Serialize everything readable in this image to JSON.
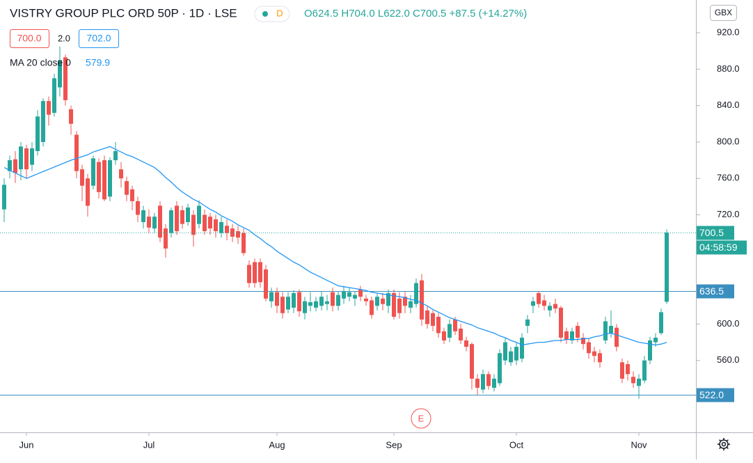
{
  "chart_data": {
    "type": "candlestick",
    "title": "VISTRY GROUP PLC ORD 50P · 1D · LSE",
    "interval_badge": "D",
    "ohlc_legend": "O624.5 H704.0 L622.0 C700.5 +87.5 (+14.27%)",
    "bid": "700.0",
    "spread": "2.0",
    "ask": "702.0",
    "currency": "GBX",
    "countdown": "04:58:59",
    "event_marker": "E",
    "up_color": "#26a69a",
    "down_color": "#ef5350",
    "grid": false,
    "categories": [
      null,
      null,
      null,
      null,
      "Jun",
      null,
      null,
      null,
      null,
      null,
      null,
      null,
      null,
      null,
      null,
      null,
      null,
      null,
      null,
      null,
      null,
      null,
      null,
      null,
      null,
      null,
      "Jul",
      null,
      null,
      null,
      null,
      null,
      null,
      null,
      null,
      null,
      null,
      null,
      null,
      null,
      null,
      null,
      null,
      null,
      null,
      null,
      null,
      null,
      null,
      "Aug",
      null,
      null,
      null,
      null,
      null,
      null,
      null,
      null,
      null,
      null,
      null,
      null,
      null,
      null,
      null,
      null,
      null,
      null,
      null,
      null,
      "Sep",
      null,
      null,
      null,
      null,
      null,
      null,
      null,
      null,
      null,
      null,
      null,
      null,
      null,
      null,
      null,
      null,
      null,
      null,
      null,
      null,
      null,
      "Oct",
      null,
      null,
      null,
      null,
      null,
      null,
      null,
      null,
      null,
      null,
      null,
      null,
      null,
      null,
      null,
      null,
      null,
      null,
      null,
      null,
      null,
      "Nov",
      null,
      null,
      null,
      null,
      null
    ],
    "open": [
      726,
      768,
      781,
      770,
      793,
      775,
      790,
      800,
      845,
      832,
      860,
      893,
      836,
      808,
      770,
      760,
      752,
      778,
      780,
      740,
      780,
      770,
      757,
      748,
      735,
      712,
      718,
      705,
      730,
      705,
      700,
      730,
      725,
      712,
      720,
      710,
      720,
      718,
      715,
      700,
      708,
      705,
      702,
      700,
      665,
      668,
      668,
      660,
      625,
      635,
      630,
      616,
      618,
      635,
      612,
      620,
      618,
      620,
      622,
      635,
      620,
      628,
      630,
      628,
      638,
      628,
      626,
      620,
      628,
      620,
      634,
      628,
      630,
      618,
      622,
      648,
      615,
      612,
      608,
      592,
      585,
      605,
      595,
      582,
      578,
      540,
      528,
      545,
      530,
      535,
      560,
      558,
      560,
      562,
      598,
      620,
      634,
      626,
      615,
      622,
      618,
      592,
      582,
      598,
      585,
      580,
      570,
      568,
      582,
      590,
      596,
      558,
      556,
      542,
      532,
      538,
      560,
      580,
      590,
      624.5
    ],
    "high": [
      760,
      785,
      790,
      800,
      797,
      800,
      835,
      848,
      850,
      875,
      905,
      896,
      840,
      812,
      775,
      765,
      785,
      782,
      785,
      783,
      800,
      778,
      762,
      752,
      740,
      730,
      726,
      722,
      735,
      710,
      728,
      735,
      730,
      732,
      725,
      736,
      726,
      722,
      720,
      718,
      715,
      710,
      708,
      705,
      670,
      672,
      672,
      665,
      640,
      640,
      635,
      635,
      637,
      638,
      630,
      635,
      630,
      636,
      632,
      640,
      636,
      642,
      640,
      636,
      642,
      632,
      630,
      634,
      634,
      638,
      638,
      635,
      636,
      632,
      650,
      655,
      620,
      615,
      612,
      596,
      605,
      608,
      600,
      586,
      580,
      545,
      550,
      548,
      545,
      572,
      585,
      575,
      580,
      590,
      610,
      630,
      636,
      632,
      624,
      628,
      620,
      596,
      596,
      602,
      590,
      584,
      575,
      572,
      608,
      615,
      600,
      562,
      560,
      548,
      545,
      565,
      586,
      590,
      617,
      704
    ],
    "low": [
      712,
      760,
      755,
      758,
      760,
      768,
      785,
      795,
      818,
      828,
      850,
      840,
      808,
      760,
      735,
      718,
      748,
      738,
      735,
      735,
      775,
      750,
      735,
      725,
      712,
      705,
      700,
      700,
      690,
      673,
      695,
      698,
      705,
      708,
      685,
      705,
      698,
      698,
      695,
      695,
      692,
      690,
      688,
      675,
      640,
      640,
      640,
      625,
      618,
      612,
      606,
      612,
      612,
      608,
      605,
      614,
      614,
      615,
      615,
      614,
      615,
      622,
      625,
      620,
      625,
      620,
      606,
      615,
      615,
      612,
      605,
      606,
      612,
      612,
      618,
      598,
      595,
      592,
      585,
      578,
      580,
      588,
      578,
      570,
      528,
      522,
      524,
      528,
      526,
      532,
      555,
      554,
      555,
      558,
      590,
      612,
      618,
      615,
      608,
      612,
      580,
      578,
      578,
      580,
      572,
      562,
      558,
      552,
      578,
      585,
      570,
      535,
      538,
      530,
      518,
      535,
      556,
      575,
      588,
      622
    ],
    "close": [
      753,
      780,
      766,
      795,
      770,
      793,
      828,
      845,
      830,
      870,
      890,
      846,
      820,
      768,
      752,
      730,
      782,
      745,
      737,
      780,
      790,
      760,
      742,
      735,
      720,
      725,
      706,
      718,
      695,
      683,
      725,
      702,
      710,
      728,
      698,
      730,
      702,
      705,
      702,
      712,
      700,
      696,
      695,
      678,
      645,
      645,
      646,
      628,
      635,
      620,
      612,
      630,
      634,
      614,
      625,
      624,
      625,
      630,
      625,
      620,
      632,
      636,
      635,
      632,
      630,
      625,
      610,
      630,
      622,
      634,
      608,
      612,
      620,
      625,
      645,
      605,
      600,
      598,
      590,
      582,
      600,
      592,
      582,
      575,
      540,
      530,
      545,
      532,
      540,
      568,
      580,
      570,
      575,
      585,
      605,
      625,
      622,
      620,
      620,
      617,
      585,
      583,
      592,
      585,
      578,
      568,
      565,
      558,
      603,
      598,
      575,
      540,
      545,
      535,
      540,
      560,
      582,
      585,
      613,
      700.5
    ],
    "ma": {
      "name": "MA 20 close 0",
      "color": "#2196f3",
      "values": [
        772,
        769,
        766,
        763,
        760,
        762.5,
        765,
        767.5,
        770,
        772.5,
        775,
        777.5,
        780,
        782,
        784,
        786,
        789,
        791,
        793,
        795,
        792,
        789,
        786,
        784,
        781,
        778,
        775,
        772,
        767,
        761,
        756,
        750,
        745,
        741,
        737,
        734,
        730,
        726,
        723,
        719,
        716,
        713,
        709,
        706,
        703,
        698,
        694,
        689,
        685,
        680,
        676,
        672,
        668,
        665,
        661,
        657,
        654,
        651,
        648,
        645,
        642,
        641,
        640,
        639,
        638,
        637,
        635,
        634,
        633,
        632,
        631,
        630,
        629,
        627,
        626,
        623,
        620,
        616,
        613,
        610,
        607,
        605,
        603,
        601,
        599,
        596,
        594,
        592,
        590,
        587,
        585,
        582,
        580,
        577,
        578,
        579,
        580,
        580,
        581,
        582,
        582,
        583,
        583,
        583,
        584,
        584,
        586,
        587,
        589,
        590,
        588,
        586,
        584,
        582,
        580,
        579,
        578,
        577,
        578,
        579.9
      ]
    },
    "price_lines": [
      636.5,
      {
        "value": 522,
        "label": "522.0"
      }
    ],
    "ylim": [
      481,
      956
    ],
    "yticks": [
      {
        "value": 920,
        "label": "920.0"
      },
      {
        "value": 880,
        "label": "880.0"
      },
      {
        "value": 840,
        "label": "840.0"
      },
      {
        "value": 800,
        "label": "800.0"
      },
      {
        "value": 760,
        "label": "760.0"
      },
      {
        "value": 720,
        "label": "720.0"
      },
      {
        "value": 600,
        "label": "600.0"
      },
      {
        "value": 560,
        "label": "560.0"
      }
    ]
  }
}
